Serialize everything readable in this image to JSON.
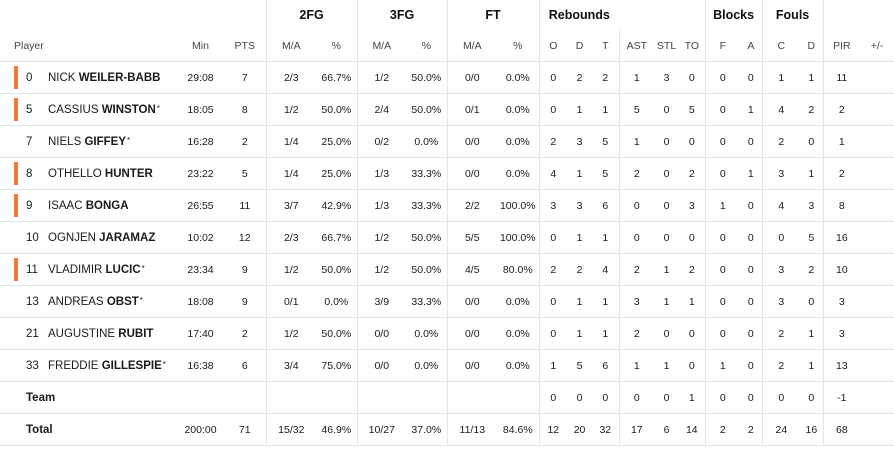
{
  "groups": {
    "fg2": "2FG",
    "fg3": "3FG",
    "ft": "FT",
    "rebounds": "Rebounds",
    "blocks": "Blocks",
    "fouls": "Fouls"
  },
  "headers": {
    "player": "Player",
    "min": "Min",
    "pts": "PTS",
    "fg2_ma": "M/A",
    "fg2_pct": "%",
    "fg3_ma": "M/A",
    "fg3_pct": "%",
    "ft_ma": "M/A",
    "ft_pct": "%",
    "reb_o": "O",
    "reb_d": "D",
    "reb_t": "T",
    "ast": "AST",
    "stl": "STL",
    "to": "TO",
    "blk_f": "F",
    "blk_a": "A",
    "foul_c": "C",
    "foul_d": "D",
    "pir": "PIR",
    "pm": "+/-"
  },
  "accent_color": "#f07a36",
  "players": [
    {
      "num": "0",
      "first": "NICK",
      "last": "WEILER-BABB",
      "star": "",
      "starter": true,
      "min": "29:08",
      "pts": "7",
      "fg2_ma": "2/3",
      "fg2_pct": "66.7%",
      "fg3_ma": "1/2",
      "fg3_pct": "50.0%",
      "ft_ma": "0/0",
      "ft_pct": "0.0%",
      "o": "0",
      "d": "2",
      "t": "2",
      "ast": "1",
      "stl": "3",
      "to": "0",
      "bf": "0",
      "ba": "0",
      "fc": "1",
      "fd": "1",
      "pir": "11",
      "pm": ""
    },
    {
      "num": "5",
      "first": "CASSIUS",
      "last": "WINSTON",
      "star": "*",
      "starter": true,
      "min": "18:05",
      "pts": "8",
      "fg2_ma": "1/2",
      "fg2_pct": "50.0%",
      "fg3_ma": "2/4",
      "fg3_pct": "50.0%",
      "ft_ma": "0/1",
      "ft_pct": "0.0%",
      "o": "0",
      "d": "1",
      "t": "1",
      "ast": "5",
      "stl": "0",
      "to": "5",
      "bf": "0",
      "ba": "1",
      "fc": "4",
      "fd": "2",
      "pir": "2",
      "pm": ""
    },
    {
      "num": "7",
      "first": "NIELS",
      "last": "GIFFEY",
      "star": "*",
      "starter": false,
      "min": "16:28",
      "pts": "2",
      "fg2_ma": "1/4",
      "fg2_pct": "25.0%",
      "fg3_ma": "0/2",
      "fg3_pct": "0.0%",
      "ft_ma": "0/0",
      "ft_pct": "0.0%",
      "o": "2",
      "d": "3",
      "t": "5",
      "ast": "1",
      "stl": "0",
      "to": "0",
      "bf": "0",
      "ba": "0",
      "fc": "2",
      "fd": "0",
      "pir": "1",
      "pm": ""
    },
    {
      "num": "8",
      "first": "OTHELLO",
      "last": "HUNTER",
      "star": "",
      "starter": true,
      "min": "23:22",
      "pts": "5",
      "fg2_ma": "1/4",
      "fg2_pct": "25.0%",
      "fg3_ma": "1/3",
      "fg3_pct": "33.3%",
      "ft_ma": "0/0",
      "ft_pct": "0.0%",
      "o": "4",
      "d": "1",
      "t": "5",
      "ast": "2",
      "stl": "0",
      "to": "2",
      "bf": "0",
      "ba": "1",
      "fc": "3",
      "fd": "1",
      "pir": "2",
      "pm": ""
    },
    {
      "num": "9",
      "first": "ISAAC",
      "last": "BONGA",
      "star": "",
      "starter": true,
      "min": "26:55",
      "pts": "11",
      "fg2_ma": "3/7",
      "fg2_pct": "42.9%",
      "fg3_ma": "1/3",
      "fg3_pct": "33.3%",
      "ft_ma": "2/2",
      "ft_pct": "100.0%",
      "o": "3",
      "d": "3",
      "t": "6",
      "ast": "0",
      "stl": "0",
      "to": "3",
      "bf": "1",
      "ba": "0",
      "fc": "4",
      "fd": "3",
      "pir": "8",
      "pm": ""
    },
    {
      "num": "10",
      "first": "OGNJEN",
      "last": "JARAMAZ",
      "star": "",
      "starter": false,
      "min": "10:02",
      "pts": "12",
      "fg2_ma": "2/3",
      "fg2_pct": "66.7%",
      "fg3_ma": "1/2",
      "fg3_pct": "50.0%",
      "ft_ma": "5/5",
      "ft_pct": "100.0%",
      "o": "0",
      "d": "1",
      "t": "1",
      "ast": "0",
      "stl": "0",
      "to": "0",
      "bf": "0",
      "ba": "0",
      "fc": "0",
      "fd": "5",
      "pir": "16",
      "pm": ""
    },
    {
      "num": "11",
      "first": "VLADIMIR",
      "last": "LUCIC",
      "star": "*",
      "starter": true,
      "min": "23:34",
      "pts": "9",
      "fg2_ma": "1/2",
      "fg2_pct": "50.0%",
      "fg3_ma": "1/2",
      "fg3_pct": "50.0%",
      "ft_ma": "4/5",
      "ft_pct": "80.0%",
      "o": "2",
      "d": "2",
      "t": "4",
      "ast": "2",
      "stl": "1",
      "to": "2",
      "bf": "0",
      "ba": "0",
      "fc": "3",
      "fd": "2",
      "pir": "10",
      "pm": ""
    },
    {
      "num": "13",
      "first": "ANDREAS",
      "last": "OBST",
      "star": "*",
      "starter": false,
      "min": "18:08",
      "pts": "9",
      "fg2_ma": "0/1",
      "fg2_pct": "0.0%",
      "fg3_ma": "3/9",
      "fg3_pct": "33.3%",
      "ft_ma": "0/0",
      "ft_pct": "0.0%",
      "o": "0",
      "d": "1",
      "t": "1",
      "ast": "3",
      "stl": "1",
      "to": "1",
      "bf": "0",
      "ba": "0",
      "fc": "3",
      "fd": "0",
      "pir": "3",
      "pm": ""
    },
    {
      "num": "21",
      "first": "AUGUSTINE",
      "last": "RUBIT",
      "star": "",
      "starter": false,
      "min": "17:40",
      "pts": "2",
      "fg2_ma": "1/2",
      "fg2_pct": "50.0%",
      "fg3_ma": "0/0",
      "fg3_pct": "0.0%",
      "ft_ma": "0/0",
      "ft_pct": "0.0%",
      "o": "0",
      "d": "1",
      "t": "1",
      "ast": "2",
      "stl": "0",
      "to": "0",
      "bf": "0",
      "ba": "0",
      "fc": "2",
      "fd": "1",
      "pir": "3",
      "pm": ""
    },
    {
      "num": "33",
      "first": "FREDDIE",
      "last": "GILLESPIE",
      "star": "*",
      "starter": false,
      "min": "16:38",
      "pts": "6",
      "fg2_ma": "3/4",
      "fg2_pct": "75.0%",
      "fg3_ma": "0/0",
      "fg3_pct": "0.0%",
      "ft_ma": "0/0",
      "ft_pct": "0.0%",
      "o": "1",
      "d": "5",
      "t": "6",
      "ast": "1",
      "stl": "1",
      "to": "0",
      "bf": "1",
      "ba": "0",
      "fc": "2",
      "fd": "1",
      "pir": "13",
      "pm": ""
    }
  ],
  "team": {
    "label": "Team",
    "min": "",
    "pts": "",
    "fg2_ma": "",
    "fg2_pct": "",
    "fg3_ma": "",
    "fg3_pct": "",
    "ft_ma": "",
    "ft_pct": "",
    "o": "0",
    "d": "0",
    "t": "0",
    "ast": "0",
    "stl": "0",
    "to": "1",
    "bf": "0",
    "ba": "0",
    "fc": "0",
    "fd": "0",
    "pir": "-1",
    "pm": ""
  },
  "total": {
    "label": "Total",
    "min": "200:00",
    "pts": "71",
    "fg2_ma": "15/32",
    "fg2_pct": "46.9%",
    "fg3_ma": "10/27",
    "fg3_pct": "37.0%",
    "ft_ma": "11/13",
    "ft_pct": "84.6%",
    "o": "12",
    "d": "20",
    "t": "32",
    "ast": "17",
    "stl": "6",
    "to": "14",
    "bf": "2",
    "ba": "2",
    "fc": "24",
    "fd": "16",
    "pir": "68",
    "pm": ""
  }
}
